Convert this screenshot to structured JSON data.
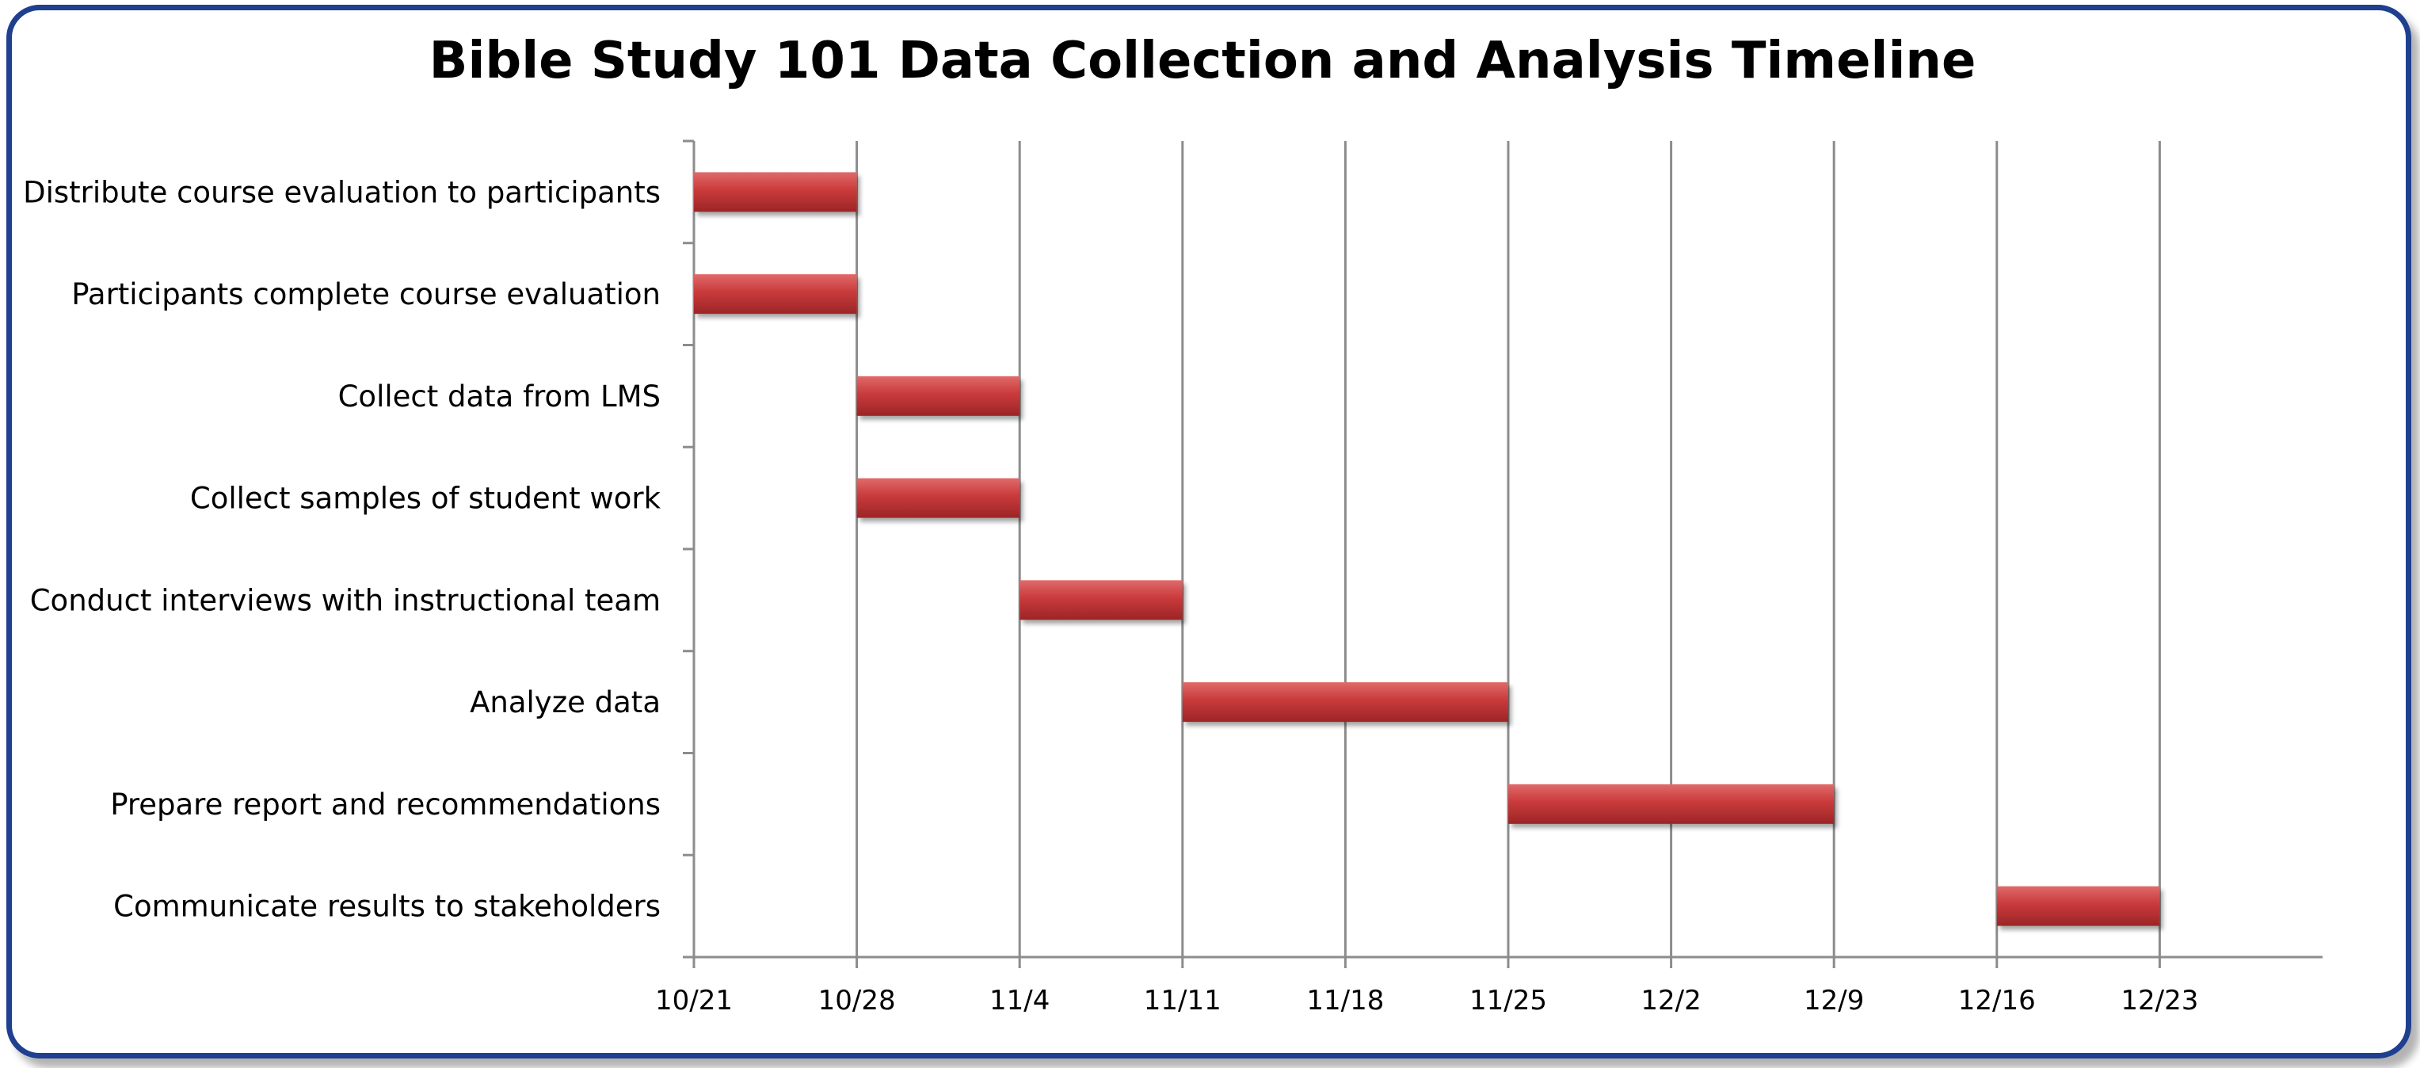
{
  "chart_data": {
    "type": "bar",
    "orientation": "horizontal",
    "subtype": "gantt",
    "title": "Bible Study 101 Data Collection and Analysis Timeline",
    "xlabel": "",
    "ylabel": "",
    "x_ticks": [
      "10/21",
      "10/28",
      "11/4",
      "11/11",
      "11/18",
      "11/25",
      "12/2",
      "12/9",
      "12/16",
      "12/23"
    ],
    "xlim": [
      "10/21",
      "12/30"
    ],
    "tasks": [
      {
        "label": "Distribute course evaluation to participants",
        "start": "10/21",
        "end": "10/28"
      },
      {
        "label": "Participants complete course evaluation",
        "start": "10/21",
        "end": "10/28"
      },
      {
        "label": "Collect data from LMS",
        "start": "10/28",
        "end": "11/4"
      },
      {
        "label": "Collect samples of student work",
        "start": "10/28",
        "end": "11/4"
      },
      {
        "label": "Conduct interviews with instructional team",
        "start": "11/4",
        "end": "11/11"
      },
      {
        "label": "Analyze data",
        "start": "11/11",
        "end": "11/25"
      },
      {
        "label": "Prepare report and recommendations",
        "start": "11/25",
        "end": "12/9"
      },
      {
        "label": "Communicate results to stakeholders",
        "start": "12/16",
        "end": "12/23"
      }
    ],
    "bar_color": "#c0393b",
    "grid": true,
    "legend": "none"
  }
}
